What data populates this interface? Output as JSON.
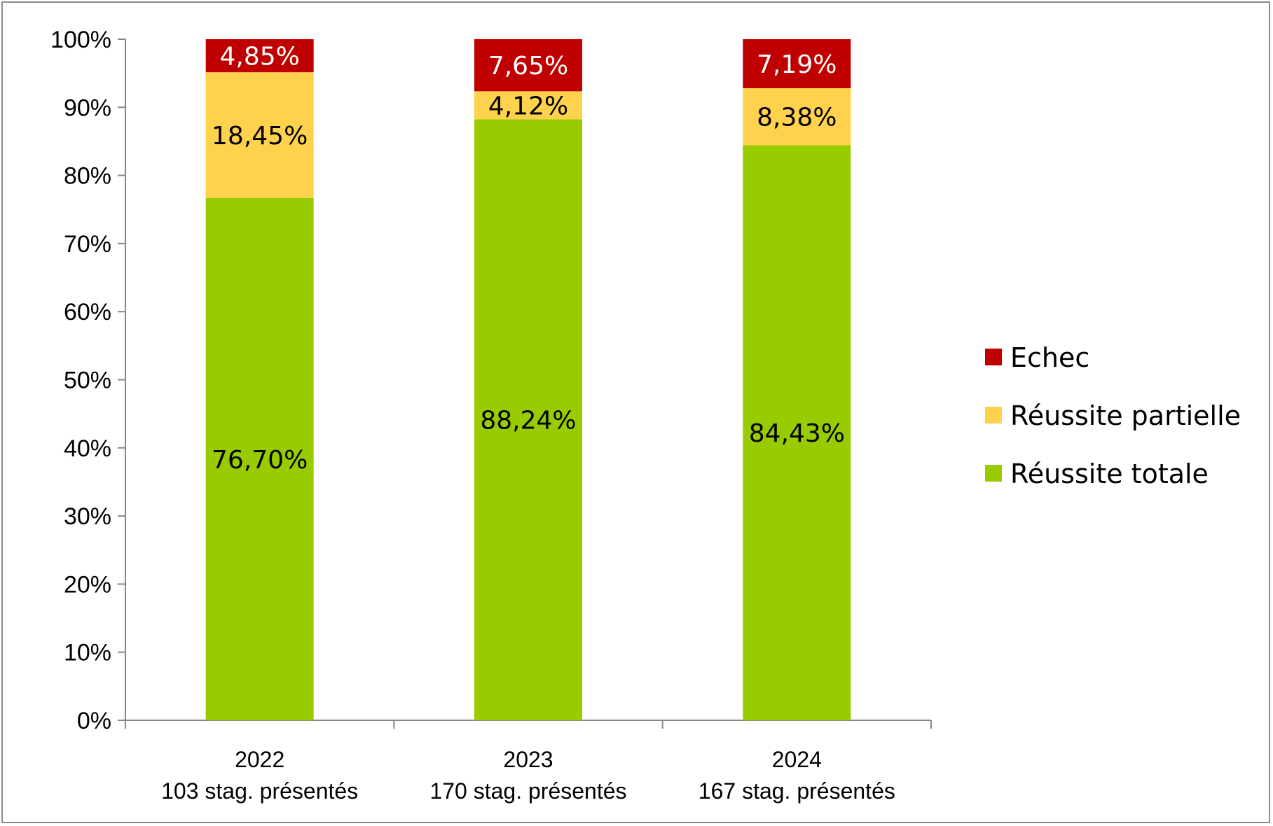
{
  "chart_data": {
    "type": "bar",
    "stacked": true,
    "categories": [
      [
        "2022",
        "103 stag. présentés"
      ],
      [
        "2023",
        "170 stag. présentés"
      ],
      [
        "2024",
        "167 stag. présentés"
      ]
    ],
    "ylim": [
      0,
      100
    ],
    "yticks": [
      "0%",
      "10%",
      "20%",
      "30%",
      "40%",
      "50%",
      "60%",
      "70%",
      "80%",
      "90%",
      "100%"
    ],
    "grid": false,
    "legend_position": "right",
    "series": [
      {
        "name": "Réussite totale",
        "values": [
          76.7,
          88.24,
          84.43
        ],
        "labels": [
          "76,70%",
          "88,24%",
          "84,43%"
        ],
        "color": "#99cc00",
        "label_color": "#000000"
      },
      {
        "name": "Réussite partielle",
        "values": [
          18.45,
          4.12,
          8.38
        ],
        "labels": [
          "18,45%",
          "4,12%",
          "8,38%"
        ],
        "color": "#ffd24d",
        "label_color": "#000000"
      },
      {
        "name": "Echec",
        "values": [
          4.85,
          7.65,
          7.19
        ],
        "labels": [
          "4,85%",
          "7,65%",
          "7,19%"
        ],
        "color": "#c00000",
        "label_color": "#ffffff"
      }
    ],
    "legend_order": [
      "Echec",
      "Réussite partielle",
      "Réussite totale"
    ]
  }
}
